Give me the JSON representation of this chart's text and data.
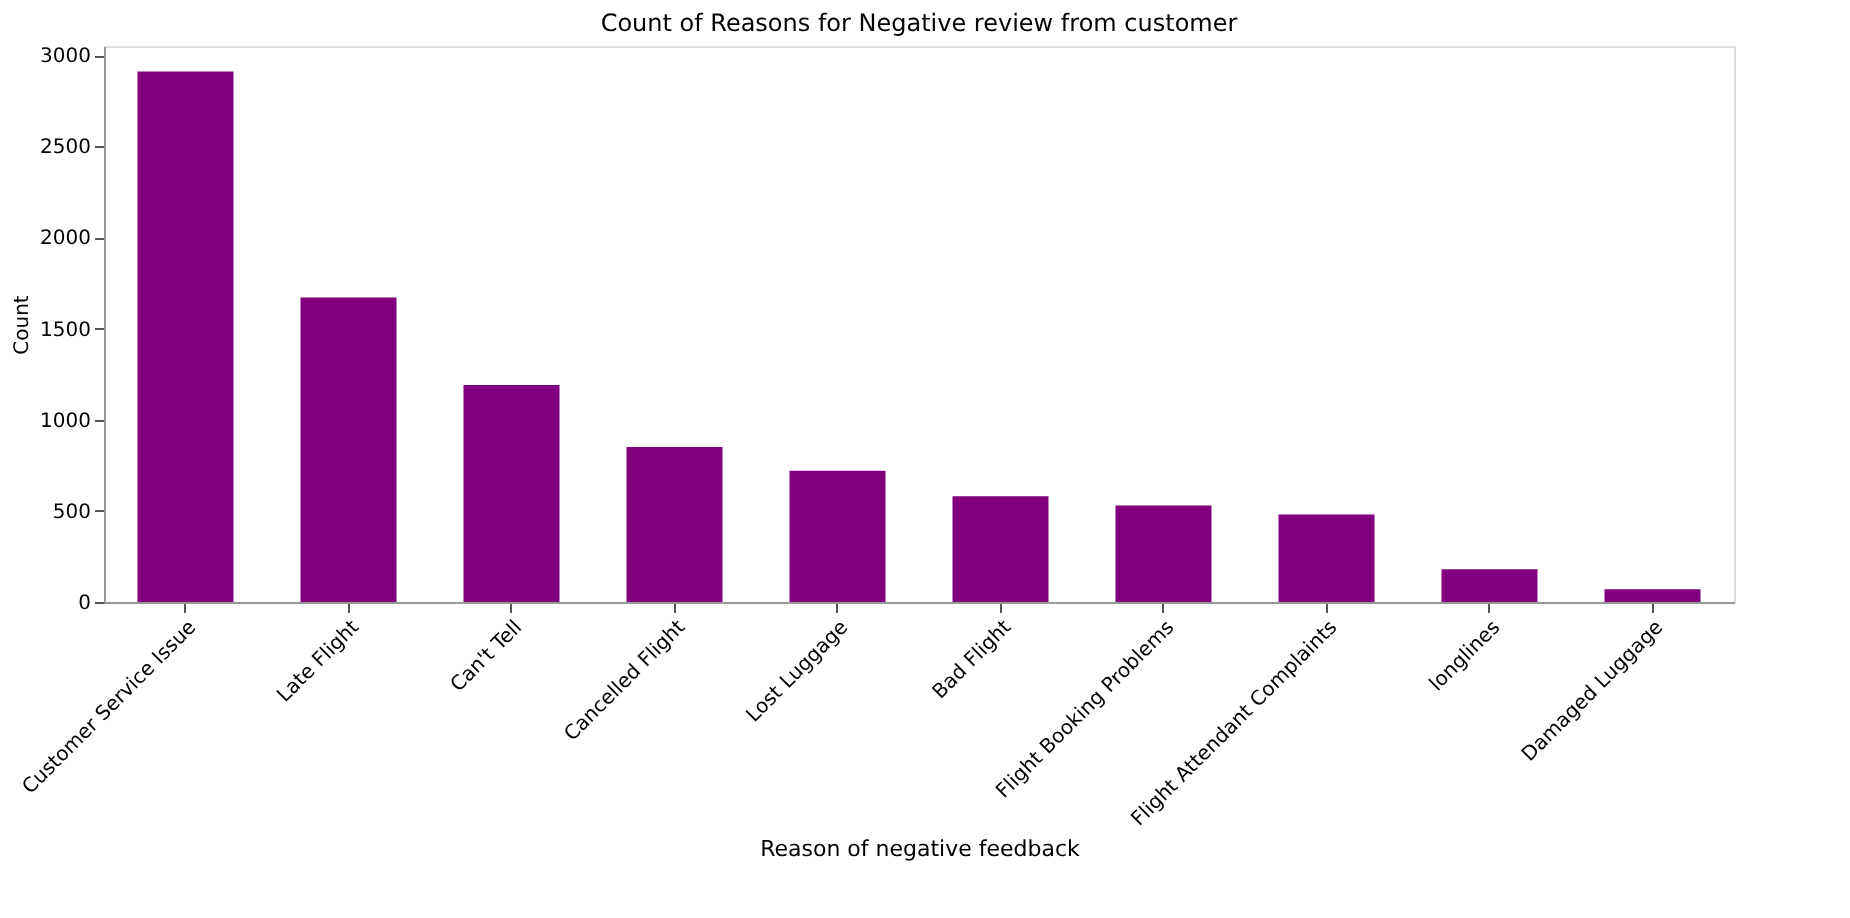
{
  "chart_data": {
    "type": "bar",
    "title": "Count of Reasons for Negative review from customer",
    "xlabel": "Reason of negative feedback",
    "ylabel": "Count",
    "categories": [
      "Customer Service Issue",
      "Late Flight",
      "Can't Tell",
      "Cancelled Flight",
      "Lost Luggage",
      "Bad Flight",
      "Flight Booking Problems",
      "Flight Attendant Complaints",
      "longlines",
      "Damaged Luggage"
    ],
    "values": [
      2910,
      1670,
      1190,
      850,
      720,
      580,
      530,
      480,
      180,
      70
    ],
    "color": "#800080",
    "ylim": [
      0,
      3050
    ],
    "yticks": [
      0,
      500,
      1000,
      1500,
      2000,
      2500,
      3000
    ],
    "grid": false
  }
}
